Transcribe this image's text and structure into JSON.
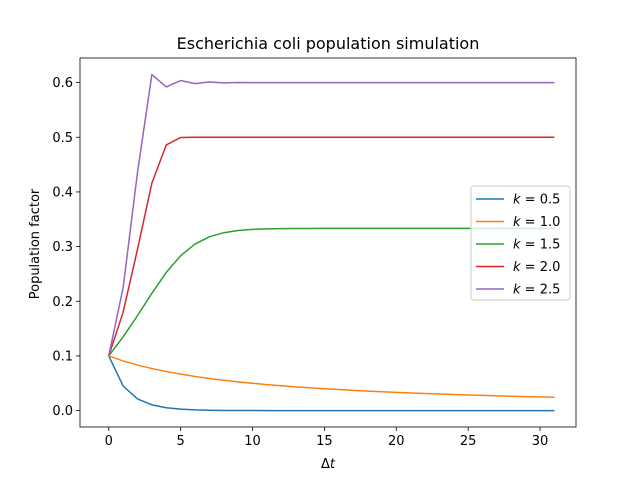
{
  "chart_data": {
    "type": "line",
    "title": "Escherichia coli population simulation",
    "xlabel_var": "t",
    "xlabel_prefix": "Δ",
    "ylabel": "Population factor",
    "xlim": [
      -2.0,
      32.5
    ],
    "ylim": [
      -0.03,
      0.645
    ],
    "xticks": [
      0,
      5,
      10,
      15,
      20,
      25,
      30
    ],
    "yticks": [
      0.0,
      0.1,
      0.2,
      0.3,
      0.4,
      0.5,
      0.6
    ],
    "ytick_labels": [
      "0.0",
      "0.1",
      "0.2",
      "0.3",
      "0.4",
      "0.5",
      "0.6"
    ],
    "grid": false,
    "legend_position": "center-right",
    "x": [
      0,
      1,
      2,
      3,
      4,
      5,
      6,
      7,
      8,
      9,
      10,
      11,
      12,
      13,
      14,
      15,
      16,
      17,
      18,
      19,
      20,
      21,
      22,
      23,
      24,
      25,
      26,
      27,
      28,
      29,
      30,
      31
    ],
    "series": [
      {
        "name": "k = 0.5",
        "legend_var": "k",
        "legend_value": "0.5",
        "color": "#1f77b4",
        "values": [
          0.1,
          0.045,
          0.0214,
          0.0105,
          0.0052,
          0.0026,
          0.0013,
          0.0006,
          0.0003,
          0.0002,
          0.0001,
          0.0,
          0.0,
          0.0,
          0.0,
          0.0,
          0.0,
          0.0,
          0.0,
          0.0,
          0.0,
          0.0,
          0.0,
          0.0,
          0.0,
          0.0,
          0.0,
          0.0,
          0.0,
          0.0,
          0.0,
          0.0
        ]
      },
      {
        "name": "k = 1.0",
        "legend_var": "k",
        "legend_value": "1.0",
        "color": "#ff7f0e",
        "values": [
          0.1,
          0.0909,
          0.0833,
          0.0769,
          0.0714,
          0.0667,
          0.0625,
          0.0588,
          0.0556,
          0.0526,
          0.05,
          0.0476,
          0.0455,
          0.0435,
          0.0417,
          0.04,
          0.0385,
          0.037,
          0.0357,
          0.0345,
          0.0333,
          0.0323,
          0.0313,
          0.0303,
          0.0294,
          0.0286,
          0.0278,
          0.027,
          0.0263,
          0.0256,
          0.025,
          0.0244
        ]
      },
      {
        "name": "k = 1.5",
        "legend_var": "k",
        "legend_value": "1.5",
        "color": "#2ca02c",
        "values": [
          0.1,
          0.135,
          0.1737,
          0.2145,
          0.2528,
          0.2833,
          0.3046,
          0.3179,
          0.3254,
          0.3295,
          0.3315,
          0.3325,
          0.3329,
          0.3331,
          0.3332,
          0.3333,
          0.3333,
          0.3333,
          0.3333,
          0.3333,
          0.3333,
          0.3333,
          0.3333,
          0.3333,
          0.3333,
          0.3333,
          0.3333,
          0.3333,
          0.3333,
          0.3333,
          0.3333,
          0.3333
        ]
      },
      {
        "name": "k = 2.0",
        "legend_var": "k",
        "legend_value": "2.0",
        "color": "#d62728",
        "values": [
          0.1,
          0.18,
          0.2952,
          0.4161,
          0.4859,
          0.4996,
          0.5,
          0.5,
          0.5,
          0.5,
          0.5,
          0.5,
          0.5,
          0.5,
          0.5,
          0.5,
          0.5,
          0.5,
          0.5,
          0.5,
          0.5,
          0.5,
          0.5,
          0.5,
          0.5,
          0.5,
          0.5,
          0.5,
          0.5,
          0.5,
          0.5,
          0.5
        ]
      },
      {
        "name": "k = 2.5",
        "legend_var": "k",
        "legend_value": "2.5",
        "color": "#9467bd",
        "values": [
          0.1,
          0.225,
          0.4359,
          0.6147,
          0.5921,
          0.6038,
          0.5981,
          0.601,
          0.5995,
          0.6002,
          0.5999,
          0.6,
          0.6,
          0.6,
          0.6,
          0.6,
          0.6,
          0.6,
          0.6,
          0.6,
          0.6,
          0.6,
          0.6,
          0.6,
          0.6,
          0.6,
          0.6,
          0.6,
          0.6,
          0.6,
          0.6,
          0.6
        ]
      }
    ]
  }
}
